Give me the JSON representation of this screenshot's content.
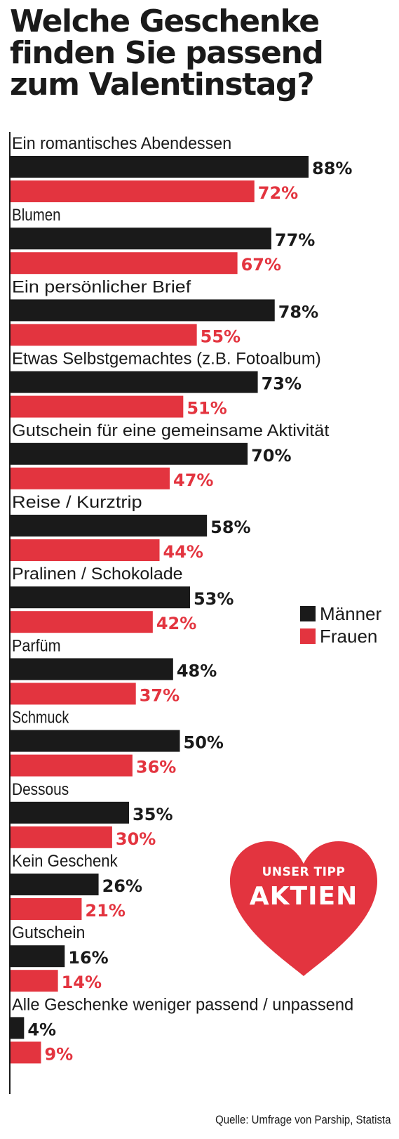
{
  "title_lines": [
    "Welche Geschenke",
    "finden Sie passend",
    "zum Valentinstag?"
  ],
  "colors": {
    "maenner": "#1a1a1a",
    "frauen": "#e3343f",
    "heart": "#e3343f"
  },
  "legend": {
    "maenner": "Männer",
    "frauen": "Frauen"
  },
  "badge": {
    "line1": "UNSER TIPP",
    "line2": "AKTIEN",
    "icon": "heart-icon"
  },
  "source": "Quelle: Umfrage von Parship, Statista",
  "chart_data": {
    "type": "bar",
    "orientation": "horizontal",
    "title": "Welche Geschenke finden Sie passend zum Valentinstag?",
    "unit": "%",
    "categories": [
      "Ein romantisches Abendessen",
      "Blumen",
      "Ein persönlicher Brief",
      "Etwas Selbstgemachtes (z.B. Fotoalbum)",
      "Gutschein für eine gemeinsame Aktivität",
      "Reise / Kurztrip",
      "Pralinen / Schokolade",
      "Parfüm",
      "Schmuck",
      "Dessous",
      "Kein Geschenk",
      "Gutschein",
      "Alle Geschenke weniger passend / unpassend"
    ],
    "series": [
      {
        "name": "Männer",
        "color": "#1a1a1a",
        "values": [
          88,
          77,
          78,
          73,
          70,
          58,
          53,
          48,
          50,
          35,
          26,
          16,
          4
        ]
      },
      {
        "name": "Frauen",
        "color": "#e3343f",
        "values": [
          72,
          67,
          55,
          51,
          47,
          44,
          42,
          37,
          36,
          30,
          21,
          14,
          9
        ]
      }
    ],
    "value_labels": {
      "maenner": [
        "88%",
        "77%",
        "78%",
        "73%",
        "70%",
        "58%",
        "53%",
        "48%",
        "50%",
        "35%",
        "26%",
        "16%",
        "4%"
      ],
      "frauen": [
        "72%",
        "67%",
        "55%",
        "51%",
        "47%",
        "44%",
        "42%",
        "37%",
        "36%",
        "30%",
        "21%",
        "14%",
        "9%"
      ]
    },
    "xlim": [
      0,
      100
    ],
    "legend_position": "right",
    "grid": false
  }
}
